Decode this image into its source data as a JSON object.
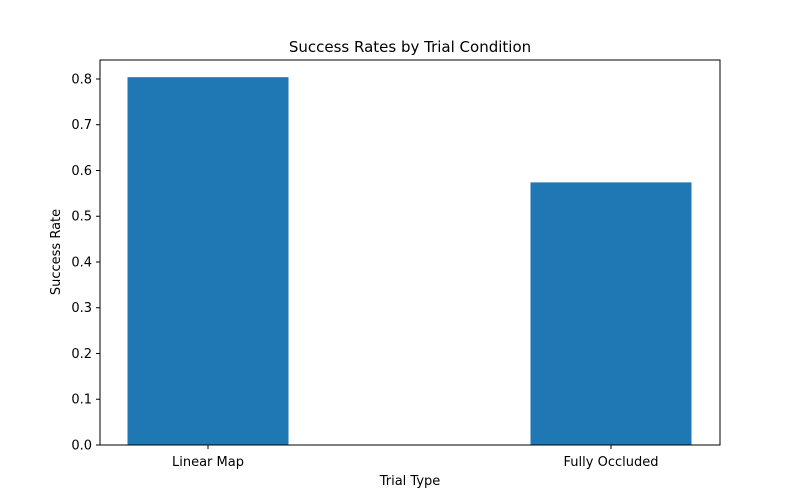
{
  "chart_data": {
    "type": "bar",
    "title": "Success Rates by Trial Condition",
    "xlabel": "Trial Type",
    "ylabel": "Success Rate",
    "categories": [
      "Linear Map",
      "Fully Occluded"
    ],
    "values": [
      0.804,
      0.574
    ],
    "ylim": [
      0.0,
      0.8415
    ],
    "yticks": [
      0.0,
      0.1,
      0.2,
      0.3,
      0.4,
      0.5,
      0.6,
      0.7,
      0.8
    ],
    "ytick_labels": [
      "0.0",
      "0.1",
      "0.2",
      "0.3",
      "0.4",
      "0.5",
      "0.6",
      "0.7",
      "0.8"
    ],
    "bar_color": "#1f77b4",
    "grid": false,
    "legend": "none"
  }
}
